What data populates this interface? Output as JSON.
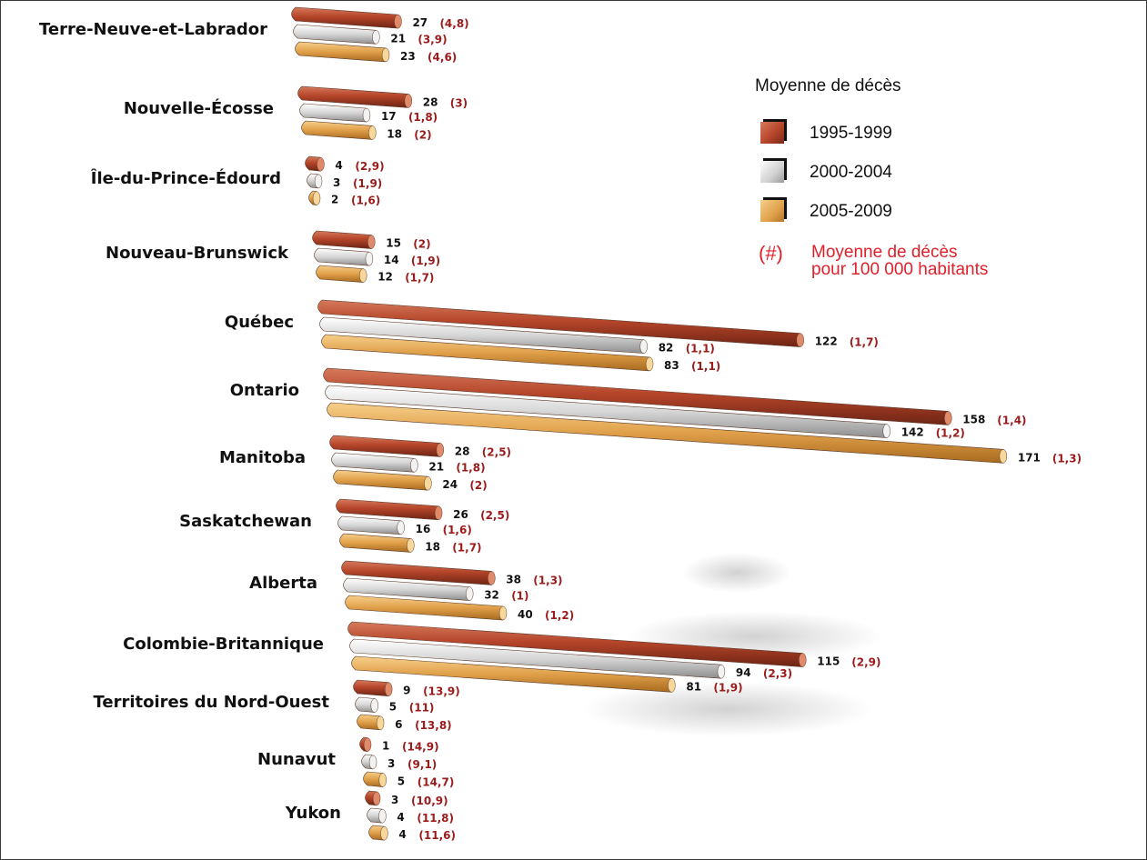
{
  "chart_data": {
    "type": "bar",
    "orientation": "horizontal",
    "legend_title": "Moyenne de décès",
    "rate_legend": {
      "symbol": "(#)",
      "label_line1": "Moyenne de décès",
      "label_line2": "pour 100 000 habitants"
    },
    "legend_position": "top-right",
    "series": [
      {
        "name": "1995-1999",
        "color": "#b5452a"
      },
      {
        "name": "2000-2004",
        "color": "#c8c8c8"
      },
      {
        "name": "2005-2009",
        "color": "#e0a04a"
      }
    ],
    "categories": [
      {
        "name": "Terre-Neuve-et-Labrador",
        "values": [
          27,
          21,
          23
        ],
        "rates": [
          "(4,8)",
          "(3,9)",
          "(4,6)"
        ]
      },
      {
        "name": "Nouvelle-Écosse",
        "values": [
          28,
          17,
          18
        ],
        "rates": [
          "(3)",
          "(1,8)",
          "(2)"
        ]
      },
      {
        "name": "Île-du-Prince-Édourd",
        "values": [
          4,
          3,
          2
        ],
        "rates": [
          "(2,9)",
          "(1,9)",
          "(1,6)"
        ]
      },
      {
        "name": "Nouveau-Brunswick",
        "values": [
          15,
          14,
          12
        ],
        "rates": [
          "(2)",
          "(1,9)",
          "(1,7)"
        ]
      },
      {
        "name": "Québec",
        "values": [
          122,
          82,
          83
        ],
        "rates": [
          "(1,7)",
          "(1,1)",
          "(1,1)"
        ]
      },
      {
        "name": "Ontario",
        "values": [
          158,
          142,
          171
        ],
        "rates": [
          "(1,4)",
          "(1,2)",
          "(1,3)"
        ]
      },
      {
        "name": "Manitoba",
        "values": [
          28,
          21,
          24
        ],
        "rates": [
          "(2,5)",
          "(1,8)",
          "(2)"
        ]
      },
      {
        "name": "Saskatchewan",
        "values": [
          26,
          16,
          18
        ],
        "rates": [
          "(2,5)",
          "(1,6)",
          "(1,7)"
        ]
      },
      {
        "name": "Alberta",
        "values": [
          38,
          32,
          40
        ],
        "rates": [
          "(1,3)",
          "(1)",
          "(1,2)"
        ]
      },
      {
        "name": "Colombie-Britannique",
        "values": [
          115,
          94,
          81
        ],
        "rates": [
          "(2,9)",
          "(2,3)",
          "(1,9)"
        ]
      },
      {
        "name": "Territoires du Nord-Ouest",
        "values": [
          9,
          5,
          6
        ],
        "rates": [
          "(13,9)",
          "(11)",
          "(13,8)"
        ]
      },
      {
        "name": "Nunavut",
        "values": [
          1,
          3,
          5
        ],
        "rates": [
          "(14,9)",
          "(9,1)",
          "(14,7)"
        ]
      },
      {
        "name": "Yukon",
        "values": [
          3,
          4,
          4
        ],
        "rates": [
          "(10,9)",
          "(11,8)",
          "(11,6)"
        ]
      }
    ]
  }
}
